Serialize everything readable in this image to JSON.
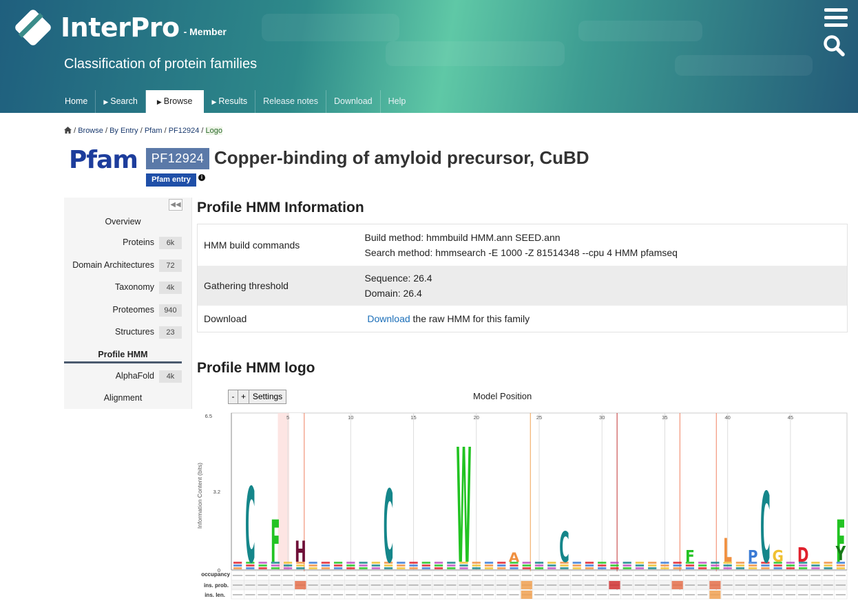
{
  "header": {
    "brand": "InterPro",
    "member_label": "- Member",
    "tagline": "Classification of protein families",
    "menu_icon": "hamburger-menu-icon",
    "search_icon": "search-icon",
    "nav": [
      {
        "label": "Home"
      },
      {
        "label": "Search"
      },
      {
        "label": "Browse"
      },
      {
        "label": "Results"
      },
      {
        "label": "Release notes"
      },
      {
        "label": "Download"
      },
      {
        "label": "Help"
      }
    ]
  },
  "breadcrumb": {
    "items": [
      "Browse",
      "By Entry",
      "Pfam",
      "PF12924"
    ],
    "current": "Logo",
    "separator": "/"
  },
  "entry": {
    "database_logo": "Pfam",
    "accession": "PF12924",
    "type_badge": "Pfam entry",
    "title": "Copper-binding of amyloid precursor, CuBD"
  },
  "sidebar": {
    "items": [
      {
        "label": "Overview",
        "count": ""
      },
      {
        "label": "Proteins",
        "count": "6k"
      },
      {
        "label": "Domain Architectures",
        "count": "72"
      },
      {
        "label": "Taxonomy",
        "count": "4k"
      },
      {
        "label": "Proteomes",
        "count": "940"
      },
      {
        "label": "Structures",
        "count": "23"
      },
      {
        "label": "Profile HMM",
        "count": ""
      },
      {
        "label": "AlphaFold",
        "count": "4k"
      },
      {
        "label": "Alignment",
        "count": ""
      }
    ],
    "active": "Profile HMM"
  },
  "hmm_info": {
    "heading": "Profile HMM Information",
    "build_key": "HMM build commands",
    "build_line1": "Build method: hmmbuild HMM.ann SEED.ann",
    "build_line2": "Search method: hmmsearch -E 1000 -Z 81514348 --cpu 4 HMM pfamseq",
    "threshold_key": "Gathering threshold",
    "threshold_line1": "Sequence: 26.4",
    "threshold_line2": "Domain: 26.4",
    "download_key": "Download",
    "download_link": "Download",
    "download_text": "the raw HMM for this family"
  },
  "hmm_logo": {
    "heading": "Profile HMM logo",
    "minus_label": "-",
    "plus_label": "+",
    "settings_label": "Settings",
    "model_position_label": "Model Position",
    "y_axis_label": "Information Content (bits)",
    "y_ticks": [
      "6.5",
      "3.2",
      "0"
    ],
    "x_ticks": [
      "5",
      "10",
      "15",
      "20",
      "25",
      "30",
      "35",
      "40",
      "45"
    ],
    "row_labels": [
      "occupancy",
      "ins. prob.",
      "ins. len."
    ],
    "letters": [
      {
        "letter": "C",
        "position": 2,
        "bits": 3.2,
        "color": "#15868a"
      },
      {
        "letter": "F",
        "position": 4,
        "bits": 1.8,
        "color": "#22c322"
      },
      {
        "letter": "H",
        "position": 6,
        "bits": 0.9,
        "color": "#6e1038"
      },
      {
        "letter": "C",
        "position": 13,
        "bits": 3.1,
        "color": "#15868a"
      },
      {
        "letter": "W",
        "position": 19,
        "bits": 4.9,
        "color": "#22c322"
      },
      {
        "letter": "A",
        "position": 23,
        "bits": 0.4,
        "color": "#f09040"
      },
      {
        "letter": "C",
        "position": 27,
        "bits": 1.3,
        "color": "#15868a"
      },
      {
        "letter": "F",
        "position": 37,
        "bits": 0.5,
        "color": "#22c322"
      },
      {
        "letter": "L",
        "position": 40,
        "bits": 1.0,
        "color": "#f09040"
      },
      {
        "letter": "C",
        "position": 43,
        "bits": 3.0,
        "color": "#15868a"
      },
      {
        "letter": "P",
        "position": 42,
        "bits": 0.5,
        "color": "#3a7bd5"
      },
      {
        "letter": "G",
        "position": 44,
        "bits": 0.5,
        "color": "#f0c030"
      },
      {
        "letter": "D",
        "position": 46,
        "bits": 0.6,
        "color": "#e0202c"
      },
      {
        "letter": "F",
        "position": 49,
        "bits": 1.8,
        "color": "#22c322"
      },
      {
        "letter": "Y",
        "position": 49,
        "bits": 0.6,
        "color": "#157a15"
      }
    ]
  }
}
